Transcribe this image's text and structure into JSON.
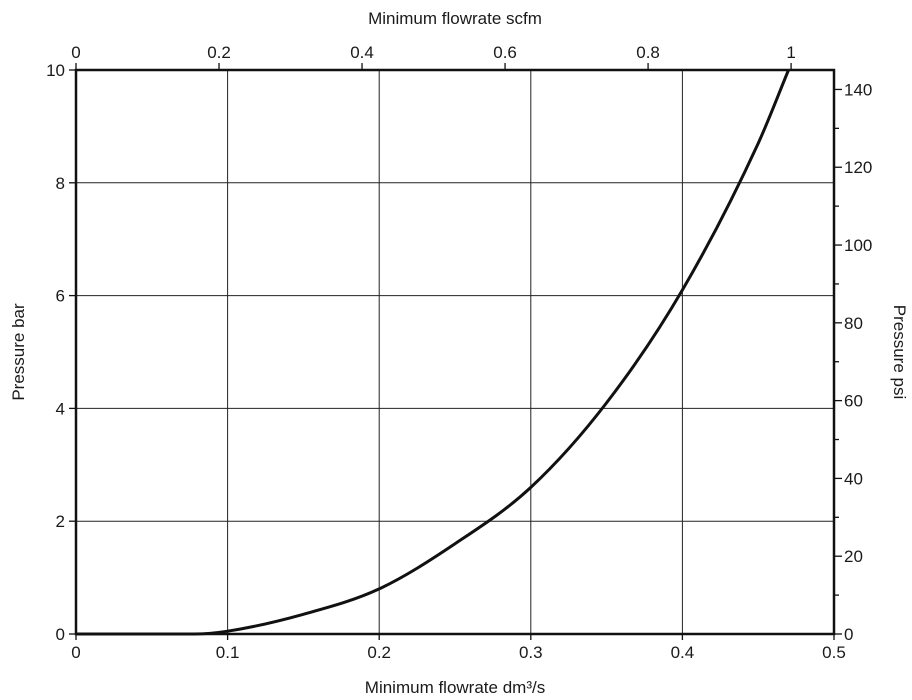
{
  "chart_data": {
    "type": "line",
    "title": "",
    "xlabel": "Minimum flowrate dm³/s",
    "ylabel": "Pressure bar",
    "xlim": [
      0,
      0.5
    ],
    "ylim": [
      0,
      10
    ],
    "x_ticks": [
      "0",
      "0.1",
      "0.2",
      "0.3",
      "0.4",
      "0.5"
    ],
    "y_ticks": [
      "0",
      "2",
      "4",
      "6",
      "8",
      "10"
    ],
    "secondary_x_axis": {
      "label": "Minimum flowrate scfm",
      "range": [
        0,
        1.06
      ],
      "ticks": [
        "0",
        "0.2",
        "0.4",
        "0.6",
        "0.8",
        "1"
      ]
    },
    "secondary_y_axis": {
      "label": "Pressure psi",
      "range": [
        0,
        145
      ],
      "ticks": [
        "0",
        "20",
        "40",
        "60",
        "80",
        "100",
        "120",
        "140"
      ]
    },
    "grid": true,
    "series": [
      {
        "x": [
          0,
          0.078,
          0.1,
          0.15,
          0.2,
          0.25,
          0.3,
          0.35,
          0.4,
          0.45,
          0.47
        ],
        "y": [
          0,
          0,
          0.05,
          0.35,
          0.8,
          1.6,
          2.6,
          4.1,
          6.1,
          8.7,
          10
        ]
      }
    ]
  }
}
